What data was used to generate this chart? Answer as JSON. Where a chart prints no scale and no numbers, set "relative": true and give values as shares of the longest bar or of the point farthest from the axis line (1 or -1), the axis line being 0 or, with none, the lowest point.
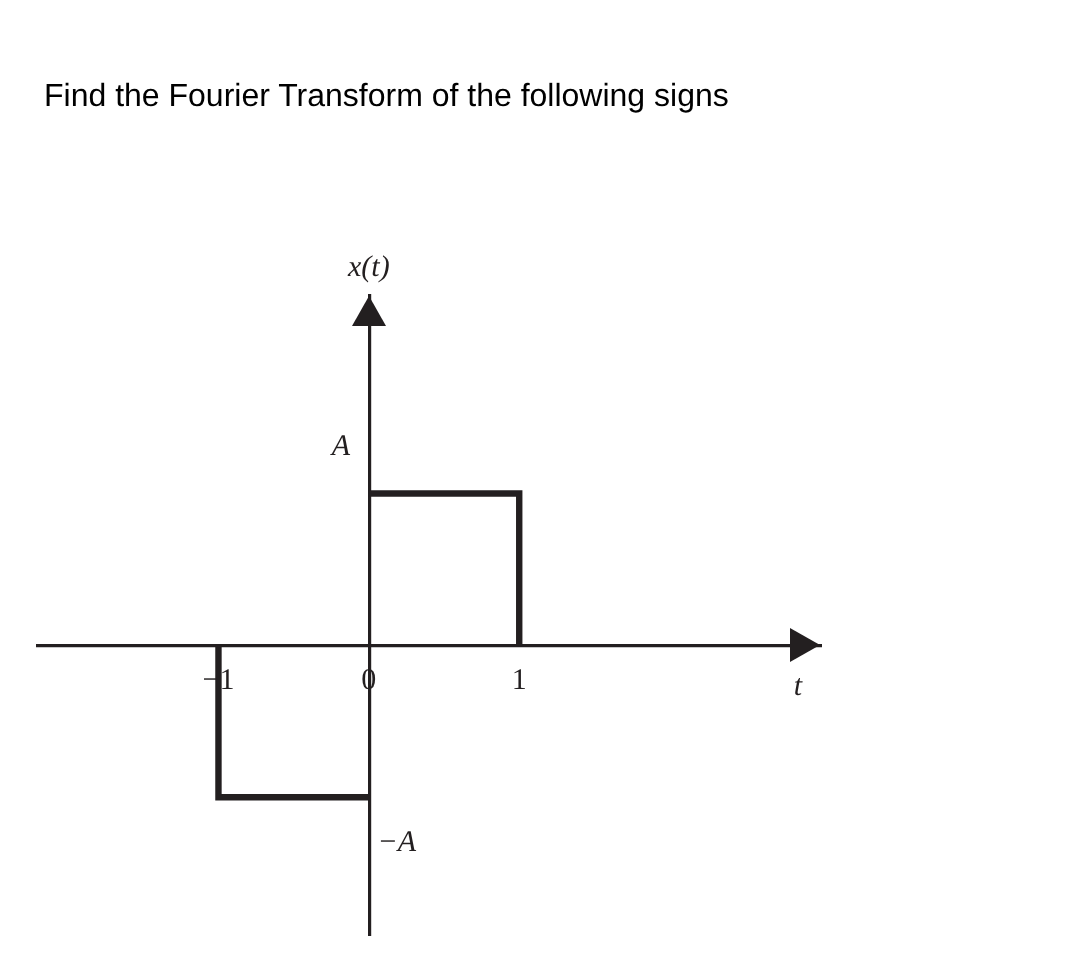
{
  "chart_data": {
    "type": "line",
    "relative": true,
    "title": "Find the Fourier Transform of the following signs",
    "xlabel": "t",
    "series": [
      {
        "color": "#231f20",
        "x": [
          -1,
          -1,
          0
        ],
        "values": [
          0,
          -1,
          -1
        ]
      },
      {
        "color": "#231f20",
        "x": [
          0,
          1,
          1
        ],
        "values": [
          1,
          1,
          0
        ]
      }
    ],
    "xlim": [
      -2.2,
      3
    ],
    "xticks": [
      {
        "value": -1,
        "label": "−1"
      },
      0,
      1
    ],
    "annotations": [
      "x(t)",
      {
        "text": "A",
        "x": 0,
        "y": 1
      },
      {
        "text": "−A",
        "x": 0,
        "y": -1
      }
    ],
    "marker": "none",
    "line_style": "solid"
  }
}
